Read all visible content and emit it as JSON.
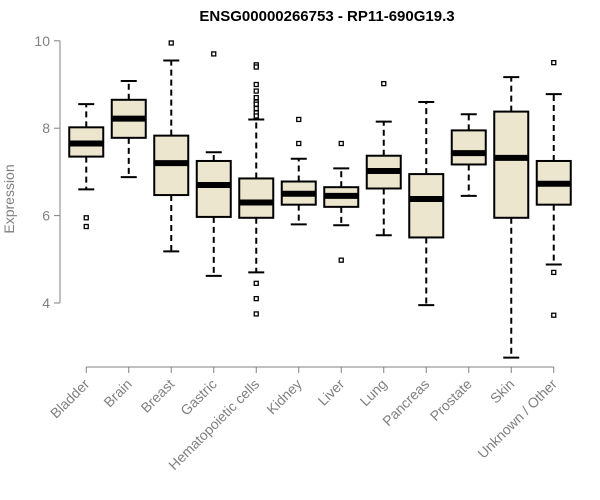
{
  "chart_data": {
    "type": "boxplot",
    "title": "ENSG00000266753 - RP11-690G19.3",
    "xlabel": "",
    "ylabel": "Expression",
    "ylim": [
      2.5,
      10.1
    ],
    "yticks": [
      4,
      6,
      8,
      10
    ],
    "colors": {
      "box_fill": "#ede6cf",
      "stroke": "#000000",
      "axis": "#808080"
    },
    "categories": [
      "Bladder",
      "Brain",
      "Breast",
      "Gastric",
      "Hematopoietic cells",
      "Kidney",
      "Liver",
      "Lung",
      "Pancreas",
      "Prostate",
      "Skin",
      "Unknown / Other"
    ],
    "boxes": [
      {
        "q1": 7.35,
        "median": 7.65,
        "q3": 8.02,
        "whisker_low": 6.6,
        "whisker_high": 8.55,
        "outliers": [
          5.95,
          5.75
        ]
      },
      {
        "q1": 7.78,
        "median": 8.22,
        "q3": 8.65,
        "whisker_low": 6.88,
        "whisker_high": 9.08,
        "outliers": []
      },
      {
        "q1": 6.47,
        "median": 7.2,
        "q3": 7.83,
        "whisker_low": 5.18,
        "whisker_high": 9.55,
        "outliers": [
          9.95
        ]
      },
      {
        "q1": 5.97,
        "median": 6.7,
        "q3": 7.25,
        "whisker_low": 4.62,
        "whisker_high": 7.45,
        "outliers": [
          9.7
        ]
      },
      {
        "q1": 5.95,
        "median": 6.3,
        "q3": 6.85,
        "whisker_low": 4.7,
        "whisker_high": 8.2,
        "outliers": [
          9.45,
          9.4,
          9.0,
          8.85,
          8.7,
          8.6,
          8.55,
          8.45,
          8.35,
          8.28,
          4.45,
          4.1,
          3.75
        ]
      },
      {
        "q1": 6.25,
        "median": 6.5,
        "q3": 6.78,
        "whisker_low": 5.8,
        "whisker_high": 7.3,
        "outliers": [
          8.2,
          7.65
        ]
      },
      {
        "q1": 6.2,
        "median": 6.45,
        "q3": 6.65,
        "whisker_low": 5.78,
        "whisker_high": 7.08,
        "outliers": [
          7.65,
          4.98
        ]
      },
      {
        "q1": 6.62,
        "median": 7.02,
        "q3": 7.37,
        "whisker_low": 5.55,
        "whisker_high": 8.15,
        "outliers": [
          9.02
        ]
      },
      {
        "q1": 5.5,
        "median": 6.38,
        "q3": 6.95,
        "whisker_low": 3.95,
        "whisker_high": 8.6,
        "outliers": []
      },
      {
        "q1": 7.17,
        "median": 7.43,
        "q3": 7.95,
        "whisker_low": 6.45,
        "whisker_high": 8.32,
        "outliers": []
      },
      {
        "q1": 5.95,
        "median": 7.32,
        "q3": 8.38,
        "whisker_low": 2.75,
        "whisker_high": 9.17,
        "outliers": []
      },
      {
        "q1": 6.25,
        "median": 6.73,
        "q3": 7.25,
        "whisker_low": 4.88,
        "whisker_high": 8.78,
        "outliers": [
          9.5,
          4.7,
          3.72
        ]
      }
    ]
  }
}
